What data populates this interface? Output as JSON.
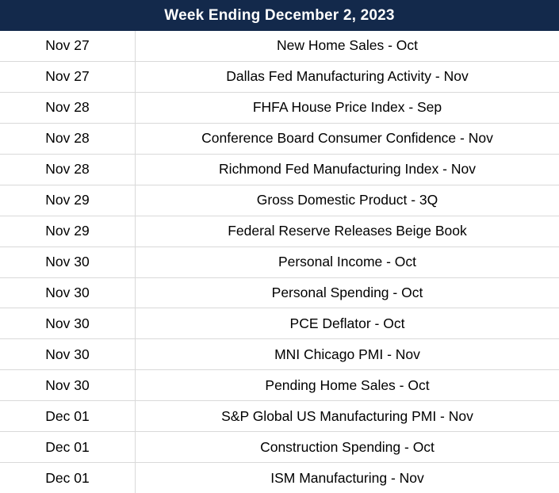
{
  "table": {
    "title": "Week Ending December 2, 2023",
    "columns": [
      "date",
      "event"
    ],
    "rows": [
      {
        "date": "Nov 27",
        "event": "New Home Sales - Oct"
      },
      {
        "date": "Nov 27",
        "event": "Dallas Fed Manufacturing Activity - Nov"
      },
      {
        "date": "Nov 28",
        "event": "FHFA House Price Index - Sep"
      },
      {
        "date": "Nov 28",
        "event": "Conference Board Consumer Confidence - Nov"
      },
      {
        "date": "Nov 28",
        "event": "Richmond Fed Manufacturing Index - Nov"
      },
      {
        "date": "Nov 29",
        "event": "Gross Domestic Product - 3Q"
      },
      {
        "date": "Nov 29",
        "event": "Federal Reserve Releases Beige Book"
      },
      {
        "date": "Nov 30",
        "event": "Personal Income - Oct"
      },
      {
        "date": "Nov 30",
        "event": "Personal Spending - Oct"
      },
      {
        "date": "Nov 30",
        "event": "PCE Deflator - Oct"
      },
      {
        "date": "Nov 30",
        "event": "MNI Chicago PMI - Nov"
      },
      {
        "date": "Nov 30",
        "event": "Pending Home Sales - Oct"
      },
      {
        "date": "Dec 01",
        "event": "S&P Global US Manufacturing PMI - Nov"
      },
      {
        "date": "Dec 01",
        "event": "Construction Spending - Oct"
      },
      {
        "date": "Dec 01",
        "event": "ISM Manufacturing - Nov"
      }
    ]
  },
  "colors": {
    "header_bg": "#13294B",
    "header_text": "#FFFFFF",
    "row_text": "#000000",
    "border": "#D9D9D9",
    "row_bg": "#FFFFFF"
  }
}
